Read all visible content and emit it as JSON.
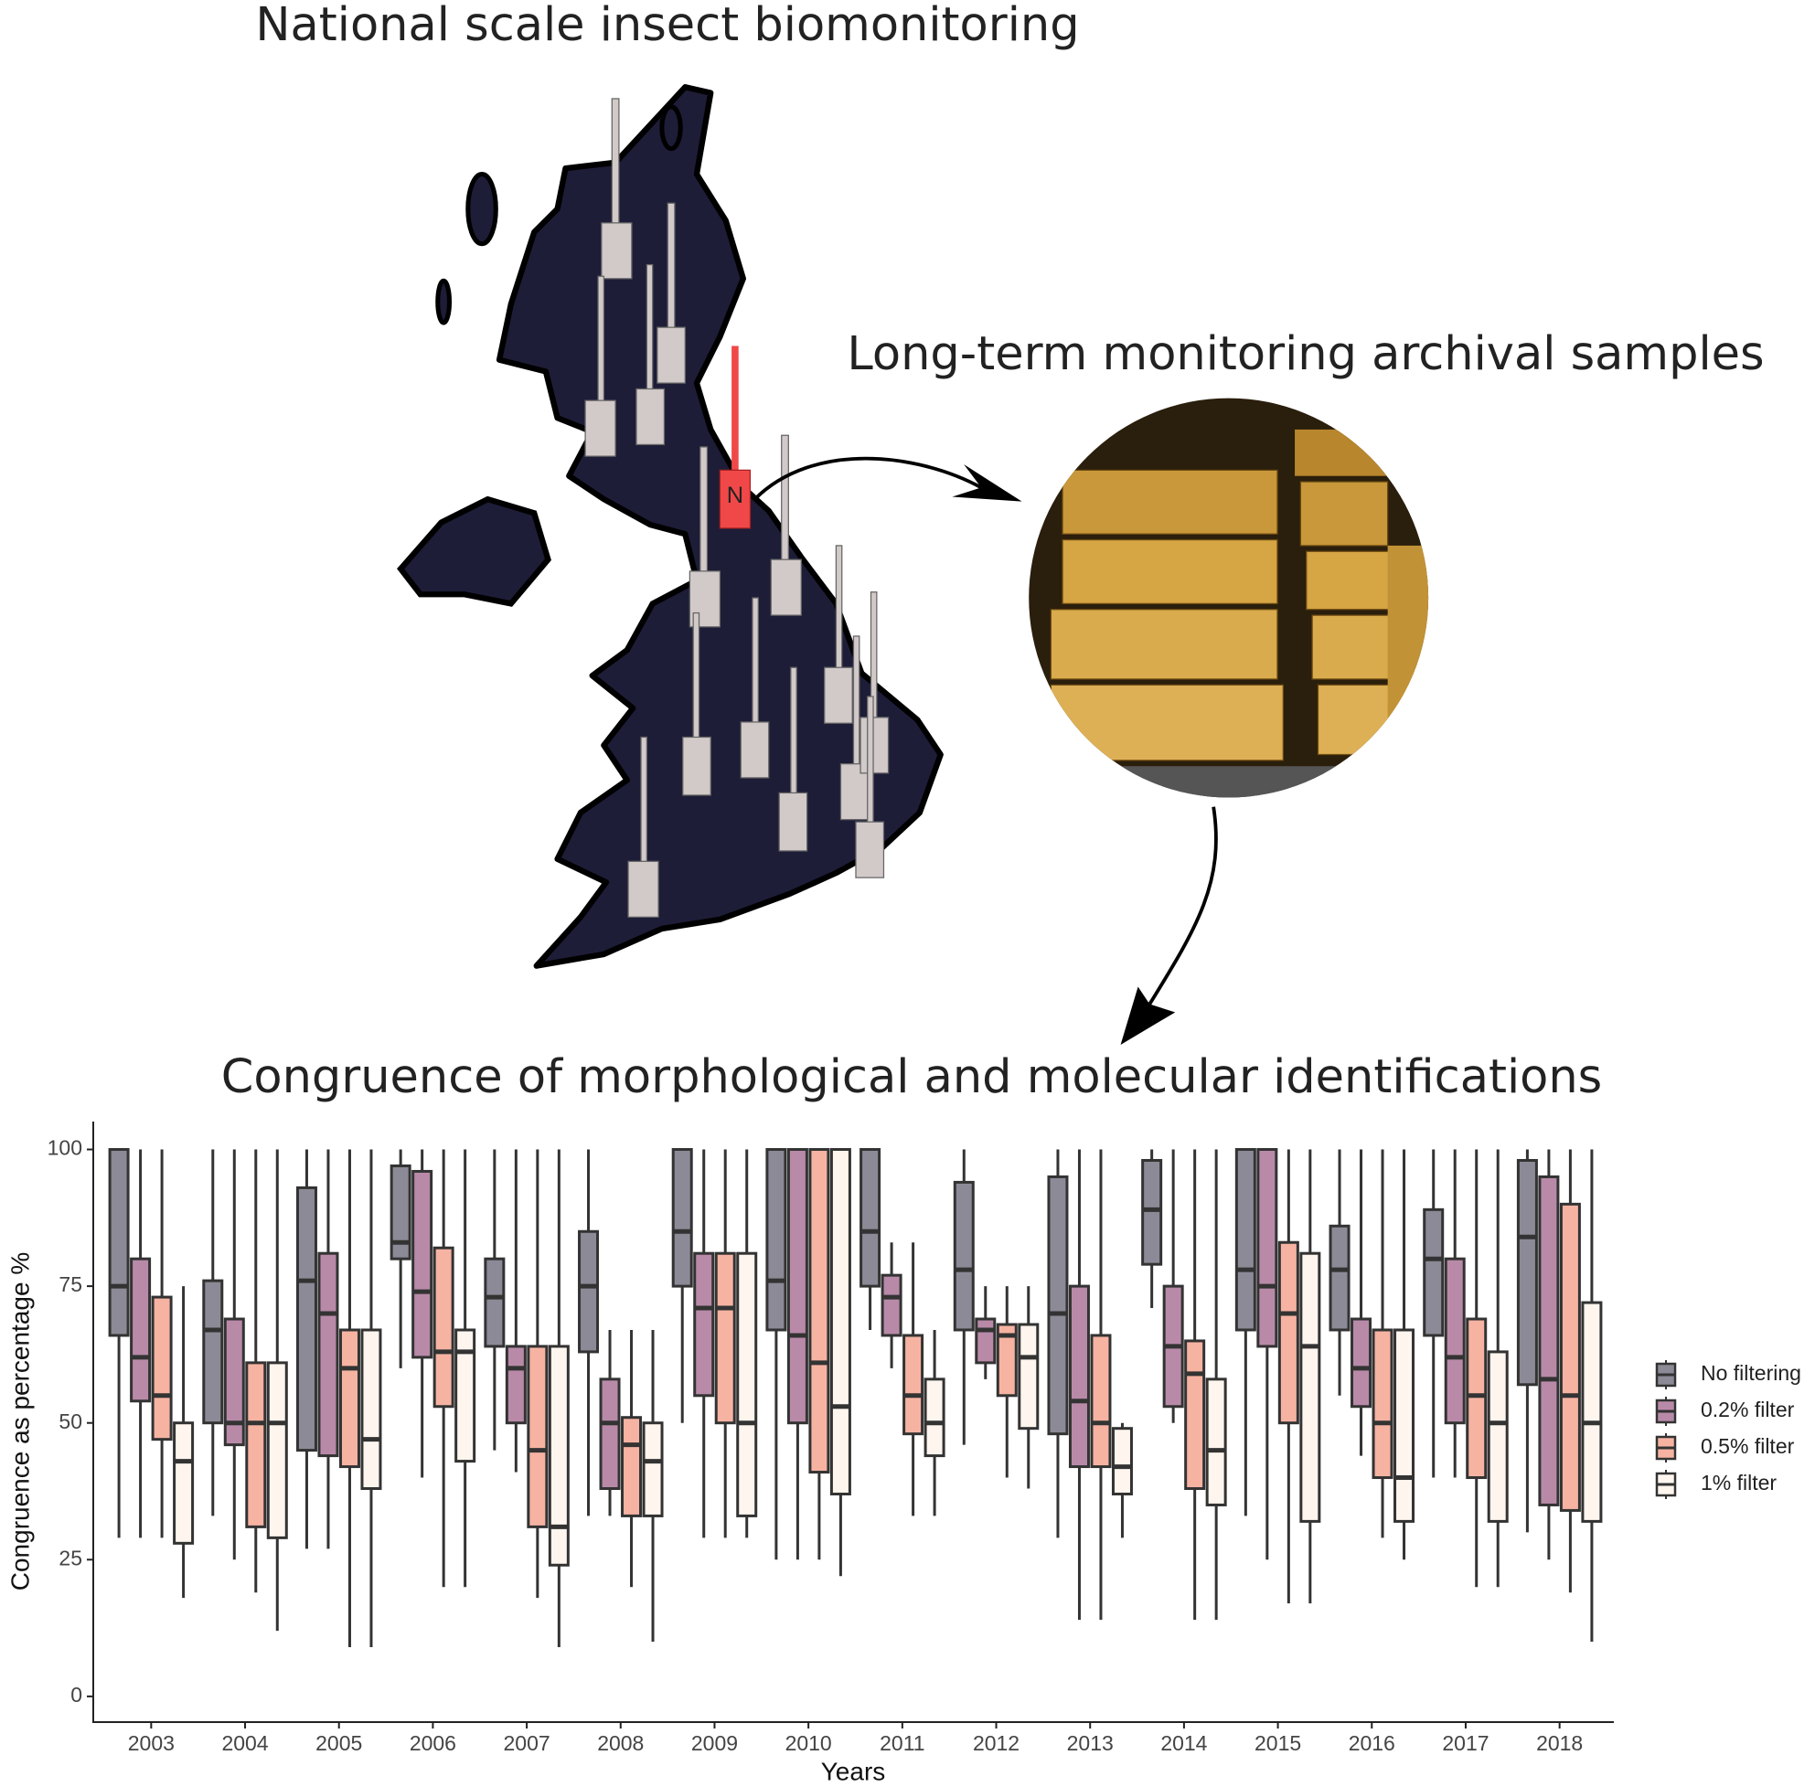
{
  "figure": {
    "title": "National scale insect biomonitoring",
    "archive_title": "Long-term monitoring archival samples",
    "map_label": "N"
  },
  "chart_data": {
    "type": "box",
    "title": "Congruence of morphological and molecular identifications",
    "x_label": "Years",
    "y_label": "Congruence as  percentage %",
    "categories": [
      "2003",
      "2004",
      "2005",
      "2006",
      "2007",
      "2008",
      "2009",
      "2010",
      "2011",
      "2012",
      "2013",
      "2014",
      "2015",
      "2016",
      "2017",
      "2018"
    ],
    "ylim": [
      -4.7,
      105.1
    ],
    "yticks": [
      0,
      25,
      50,
      75,
      100
    ],
    "grid": false,
    "legend": "right",
    "series": [
      {
        "name": "No filtering",
        "color": "#8c8a96",
        "values": [
          {
            "low": 29,
            "q1": 66,
            "median": 75,
            "q3": 100,
            "high": 100
          },
          {
            "low": 33,
            "q1": 50,
            "median": 67,
            "q3": 76,
            "high": 100
          },
          {
            "low": 27,
            "q1": 45,
            "median": 76,
            "q3": 93,
            "high": 100
          },
          {
            "low": 60,
            "q1": 80,
            "median": 83,
            "q3": 97,
            "high": 100
          },
          {
            "low": 45,
            "q1": 64,
            "median": 73,
            "q3": 80,
            "high": 100
          },
          {
            "low": 33,
            "q1": 63,
            "median": 75,
            "q3": 85,
            "high": 100
          },
          {
            "low": 50,
            "q1": 75,
            "median": 85,
            "q3": 100,
            "high": 100
          },
          {
            "low": 25,
            "q1": 67,
            "median": 76,
            "q3": 100,
            "high": 100
          },
          {
            "low": 67,
            "q1": 75,
            "median": 85,
            "q3": 100,
            "high": 100
          },
          {
            "low": 46,
            "q1": 67,
            "median": 78,
            "q3": 94,
            "high": 100
          },
          {
            "low": 29,
            "q1": 48,
            "median": 70,
            "q3": 95,
            "high": 100
          },
          {
            "low": 71,
            "q1": 79,
            "median": 89,
            "q3": 98,
            "high": 100
          },
          {
            "low": 33,
            "q1": 67,
            "median": 78,
            "q3": 100,
            "high": 100
          },
          {
            "low": 55,
            "q1": 67,
            "median": 78,
            "q3": 86,
            "high": 100
          },
          {
            "low": 40,
            "q1": 66,
            "median": 80,
            "q3": 89,
            "high": 100
          },
          {
            "low": 30,
            "q1": 57,
            "median": 84,
            "q3": 98,
            "high": 100
          }
        ]
      },
      {
        "name": "0.2% filter",
        "color": "#b88aa8",
        "values": [
          {
            "low": 29,
            "q1": 54,
            "median": 62,
            "q3": 80,
            "high": 100
          },
          {
            "low": 25,
            "q1": 46,
            "median": 50,
            "q3": 69,
            "high": 100
          },
          {
            "low": 27,
            "q1": 44,
            "median": 70,
            "q3": 81,
            "high": 100
          },
          {
            "low": 40,
            "q1": 62,
            "median": 74,
            "q3": 96,
            "high": 100
          },
          {
            "low": 41,
            "q1": 50,
            "median": 60,
            "q3": 64,
            "high": 100
          },
          {
            "low": 33,
            "q1": 38,
            "median": 50,
            "q3": 58,
            "high": 67
          },
          {
            "low": 29,
            "q1": 55,
            "median": 71,
            "q3": 81,
            "high": 100
          },
          {
            "low": 25,
            "q1": 50,
            "median": 66,
            "q3": 100,
            "high": 100
          },
          {
            "low": 60,
            "q1": 66,
            "median": 73,
            "q3": 77,
            "high": 83
          },
          {
            "low": 58,
            "q1": 61,
            "median": 67,
            "q3": 69,
            "high": 75
          },
          {
            "low": 14,
            "q1": 42,
            "median": 54,
            "q3": 75,
            "high": 100
          },
          {
            "low": 50,
            "q1": 53,
            "median": 64,
            "q3": 75,
            "high": 100
          },
          {
            "low": 25,
            "q1": 64,
            "median": 75,
            "q3": 100,
            "high": 100
          },
          {
            "low": 44,
            "q1": 53,
            "median": 60,
            "q3": 69,
            "high": 100
          },
          {
            "low": 40,
            "q1": 50,
            "median": 62,
            "q3": 80,
            "high": 100
          },
          {
            "low": 25,
            "q1": 35,
            "median": 58,
            "q3": 95,
            "high": 100
          }
        ]
      },
      {
        "name": "0.5% filter",
        "color": "#f6b3a2",
        "values": [
          {
            "low": 29,
            "q1": 47,
            "median": 55,
            "q3": 73,
            "high": 100
          },
          {
            "low": 19,
            "q1": 31,
            "median": 50,
            "q3": 61,
            "high": 100
          },
          {
            "low": 9,
            "q1": 42,
            "median": 60,
            "q3": 67,
            "high": 100
          },
          {
            "low": 20,
            "q1": 53,
            "median": 63,
            "q3": 82,
            "high": 100
          },
          {
            "low": 18,
            "q1": 31,
            "median": 45,
            "q3": 64,
            "high": 100
          },
          {
            "low": 20,
            "q1": 33,
            "median": 46,
            "q3": 51,
            "high": 67
          },
          {
            "low": 29,
            "q1": 50,
            "median": 71,
            "q3": 81,
            "high": 100
          },
          {
            "low": 25,
            "q1": 41,
            "median": 61,
            "q3": 100,
            "high": 100
          },
          {
            "low": 33,
            "q1": 48,
            "median": 55,
            "q3": 66,
            "high": 83
          },
          {
            "low": 40,
            "q1": 55,
            "median": 66,
            "q3": 68,
            "high": 75
          },
          {
            "low": 14,
            "q1": 42,
            "median": 50,
            "q3": 66,
            "high": 100
          },
          {
            "low": 14,
            "q1": 38,
            "median": 59,
            "q3": 65,
            "high": 100
          },
          {
            "low": 17,
            "q1": 50,
            "median": 70,
            "q3": 83,
            "high": 100
          },
          {
            "low": 29,
            "q1": 40,
            "median": 50,
            "q3": 67,
            "high": 100
          },
          {
            "low": 20,
            "q1": 40,
            "median": 55,
            "q3": 69,
            "high": 100
          },
          {
            "low": 19,
            "q1": 34,
            "median": 55,
            "q3": 90,
            "high": 100
          }
        ]
      },
      {
        "name": "1% filter",
        "color": "#fdf5ee",
        "values": [
          {
            "low": 18,
            "q1": 28,
            "median": 43,
            "q3": 50,
            "high": 75
          },
          {
            "low": 12,
            "q1": 29,
            "median": 50,
            "q3": 61,
            "high": 100
          },
          {
            "low": 9,
            "q1": 38,
            "median": 47,
            "q3": 67,
            "high": 100
          },
          {
            "low": 20,
            "q1": 43,
            "median": 63,
            "q3": 67,
            "high": 100
          },
          {
            "low": 9,
            "q1": 24,
            "median": 31,
            "q3": 64,
            "high": 100
          },
          {
            "low": 10,
            "q1": 33,
            "median": 43,
            "q3": 50,
            "high": 67
          },
          {
            "low": 29,
            "q1": 33,
            "median": 50,
            "q3": 81,
            "high": 100
          },
          {
            "low": 22,
            "q1": 37,
            "median": 53,
            "q3": 100,
            "high": 100
          },
          {
            "low": 33,
            "q1": 44,
            "median": 50,
            "q3": 58,
            "high": 67
          },
          {
            "low": 38,
            "q1": 49,
            "median": 62,
            "q3": 68,
            "high": 75
          },
          {
            "low": 29,
            "q1": 37,
            "median": 42,
            "q3": 49,
            "high": 50
          },
          {
            "low": 14,
            "q1": 35,
            "median": 45,
            "q3": 58,
            "high": 100
          },
          {
            "low": 17,
            "q1": 32,
            "median": 64,
            "q3": 81,
            "high": 100
          },
          {
            "low": 25,
            "q1": 32,
            "median": 40,
            "q3": 67,
            "high": 100
          },
          {
            "low": 20,
            "q1": 32,
            "median": 50,
            "q3": 63,
            "high": 100
          },
          {
            "low": 10,
            "q1": 32,
            "median": 50,
            "q3": 72,
            "high": 100
          }
        ]
      }
    ]
  }
}
